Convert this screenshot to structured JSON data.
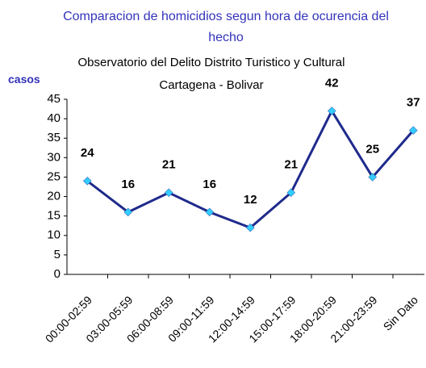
{
  "chart_data": {
    "type": "line",
    "title": "Comparacion de homicidios segun hora de ocurencia del hecho",
    "subtitle": "Observatorio del Delito Distrito Turistico y Cultural Cartagena - Bolivar",
    "y_label": "casos",
    "categories": [
      "00:00-02:59",
      "03:00-05:59",
      "06:00-08:59",
      "09:00-11:59",
      "12:00-14:59",
      "15:00-17:59",
      "18:00-20:59",
      "21:00-23:59",
      "Sin Dato"
    ],
    "series": [
      {
        "name": "casos",
        "color": "#1f2a8c",
        "marker_color": "#33ccff",
        "values": [
          24,
          16,
          21,
          16,
          12,
          21,
          42,
          25,
          37
        ]
      }
    ],
    "ylim": [
      0,
      45
    ],
    "yticks": [
      0,
      5,
      10,
      15,
      20,
      25,
      30,
      35,
      40,
      45
    ],
    "grid": false
  }
}
